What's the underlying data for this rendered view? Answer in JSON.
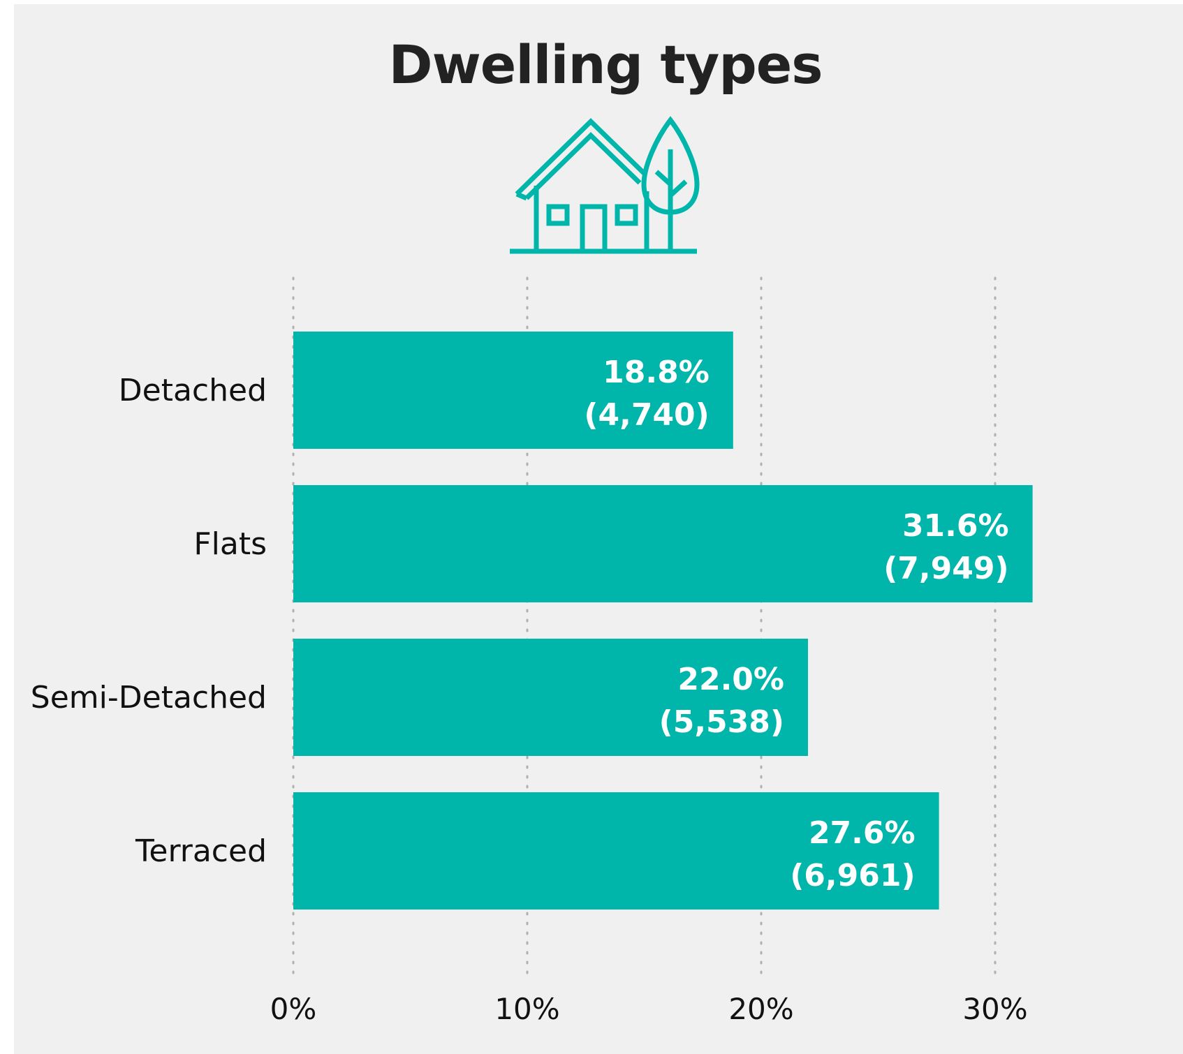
{
  "chart_data": {
    "type": "bar",
    "orientation": "horizontal",
    "title": "Dwelling types",
    "categories": [
      "Detached",
      "Flats",
      "Semi-Detached",
      "Terraced"
    ],
    "values": [
      18.8,
      31.6,
      22.0,
      27.6
    ],
    "counts": [
      4740,
      7949,
      5538,
      6961
    ],
    "value_labels": [
      "18.8%",
      "31.6%",
      "22.0%",
      "27.6%"
    ],
    "count_labels": [
      "(4,740)",
      "(7,949)",
      "(5,538)",
      "(6,961)"
    ],
    "x_ticks": [
      0,
      10,
      20,
      30
    ],
    "x_tick_labels": [
      "0%",
      "10%",
      "20%",
      "30%"
    ],
    "xlim": [
      0,
      31.6
    ],
    "grid": "vertical dotted",
    "legend": "none"
  },
  "colors": {
    "bar": "#00b5aa",
    "icon": "#00b5aa",
    "background": "#f0f0f0",
    "grid": "#b0b0b0"
  },
  "icons": {
    "header": "house-with-tree-icon"
  }
}
